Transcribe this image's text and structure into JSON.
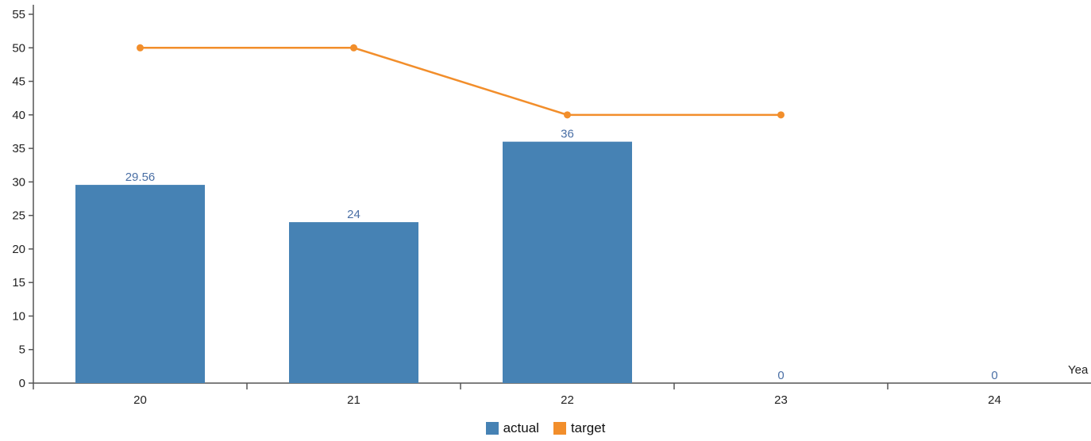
{
  "chart_data": {
    "type": "bar",
    "categories": [
      "20",
      "21",
      "22",
      "23",
      "24"
    ],
    "xlabel": "Yea",
    "ylabel": "",
    "ylim": [
      0,
      55
    ],
    "yticks": [
      0,
      5,
      10,
      15,
      20,
      25,
      30,
      35,
      40,
      45,
      50,
      55
    ],
    "series": [
      {
        "name": "actual",
        "kind": "bar",
        "color": "#4682b4",
        "label_color": "#4a6fa5",
        "values": [
          29.56,
          24,
          36,
          0,
          0
        ],
        "labels": [
          "29.56",
          "24",
          "36",
          "0",
          "0"
        ]
      },
      {
        "name": "target",
        "kind": "line",
        "color": "#f28e2b",
        "values": [
          50,
          50,
          40,
          40,
          null
        ]
      }
    ],
    "legend": {
      "position": "bottom-center"
    }
  }
}
